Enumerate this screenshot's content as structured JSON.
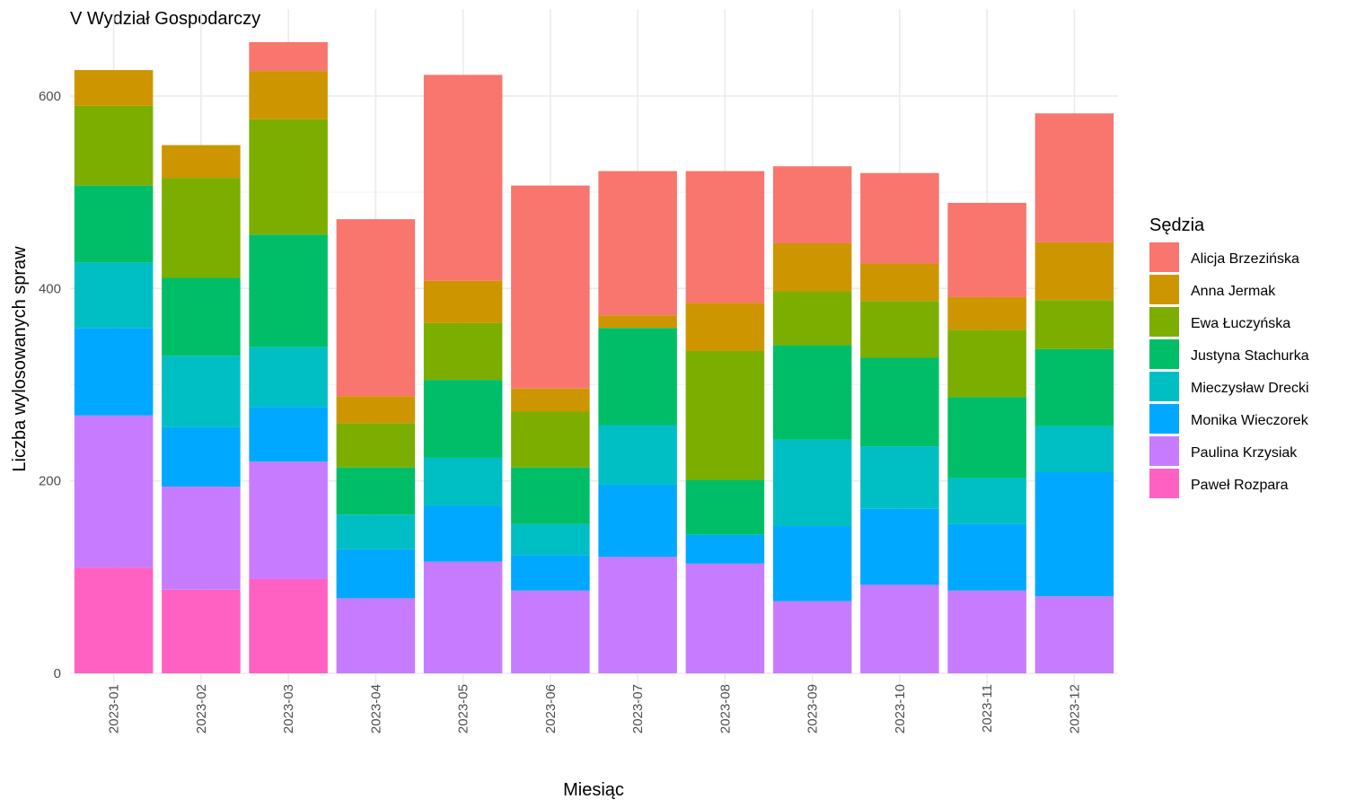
{
  "chart_data": {
    "type": "bar",
    "stacked": true,
    "title": "V Wydział Gospodarczy",
    "xlabel": "Miesiąc",
    "ylabel": "Liczba wylosowanych spraw",
    "ylim": [
      0,
      660
    ],
    "yticks": [
      0,
      200,
      400,
      600
    ],
    "grid": true,
    "legend_title": "Sędzia",
    "legend_position": "right",
    "categories": [
      "2023-01",
      "2023-02",
      "2023-03",
      "2023-04",
      "2023-05",
      "2023-06",
      "2023-07",
      "2023-08",
      "2023-09",
      "2023-10",
      "2023-11",
      "2023-12"
    ],
    "series": [
      {
        "name": "Paweł Rozpara",
        "color": "#FF61C3",
        "values": [
          110,
          87,
          98,
          0,
          0,
          0,
          0,
          0,
          0,
          0,
          0,
          0
        ]
      },
      {
        "name": "Paulina Krzysiak",
        "color": "#C77CFF",
        "values": [
          158,
          107,
          122,
          78,
          116,
          86,
          121,
          114,
          75,
          92,
          86,
          80
        ]
      },
      {
        "name": "Monika Wieczorek",
        "color": "#00A9FF",
        "values": [
          91,
          62,
          57,
          51,
          58,
          37,
          75,
          30,
          78,
          79,
          69,
          129
        ]
      },
      {
        "name": "Mieczysław Drecki",
        "color": "#00BFC4",
        "values": [
          68,
          74,
          62,
          36,
          50,
          32,
          62,
          0,
          90,
          65,
          48,
          48
        ]
      },
      {
        "name": "Justyna Stachurka",
        "color": "#00BE67",
        "values": [
          80,
          81,
          117,
          49,
          81,
          59,
          101,
          57,
          98,
          92,
          84,
          80
        ]
      },
      {
        "name": "Ewa Łuczyńska",
        "color": "#7CAE00",
        "values": [
          83,
          104,
          120,
          46,
          59,
          58,
          0,
          134,
          56,
          59,
          70,
          51
        ]
      },
      {
        "name": "Anna Jermak",
        "color": "#CD9600",
        "values": [
          37,
          34,
          50,
          28,
          44,
          24,
          13,
          50,
          50,
          39,
          34,
          60
        ]
      },
      {
        "name": "Alicja Brzezińska",
        "color": "#F8766D",
        "values": [
          0,
          0,
          30,
          184,
          214,
          211,
          150,
          137,
          80,
          94,
          98,
          134
        ]
      }
    ]
  }
}
